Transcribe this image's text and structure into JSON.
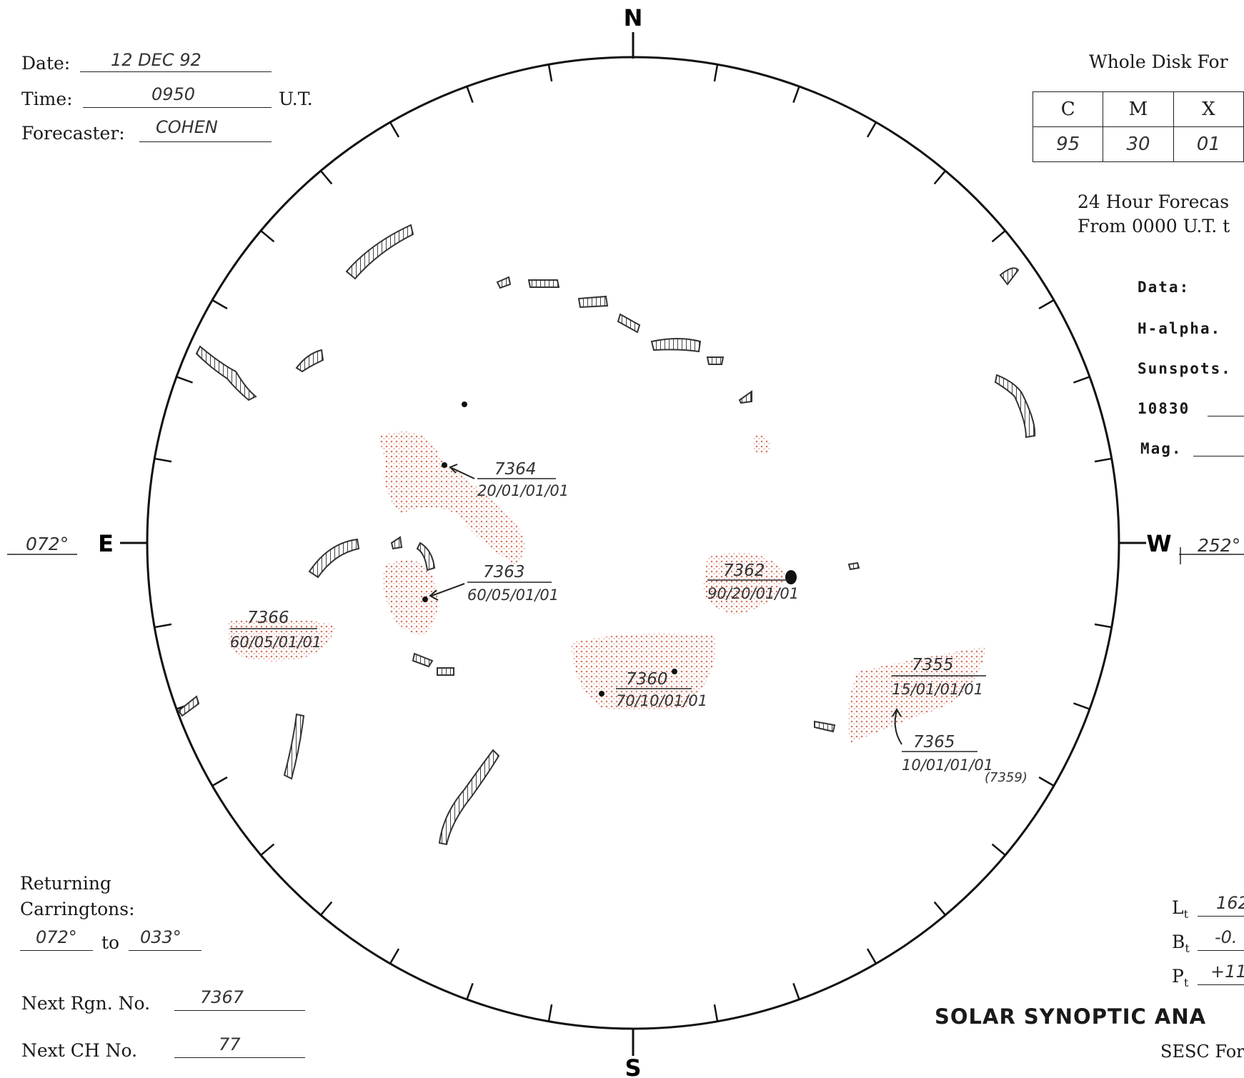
{
  "header": {
    "date_label": "Date:",
    "date_value": "12 DEC 92",
    "time_label": "Time:",
    "time_value": "0950",
    "time_unit": "U.T.",
    "forecaster_label": "Forecaster:",
    "forecaster_value": "COHEN"
  },
  "forecast": {
    "title": "Whole Disk For",
    "columns": [
      "C",
      "M",
      "X"
    ],
    "values": [
      "95",
      "30",
      "01"
    ],
    "note_line1": "24 Hour Forecas",
    "note_line2": "From 0000 U.T. t"
  },
  "data_fields": {
    "title": "Data:",
    "items": [
      "H-alpha.",
      "Sunspots.",
      "10830",
      "Mag."
    ]
  },
  "compass": {
    "north": "N",
    "south": "S",
    "east": "E",
    "west": "W"
  },
  "longitudes": {
    "east": "072°",
    "west": "252°"
  },
  "regions": [
    {
      "number": "7364",
      "code": "20/01/01/01"
    },
    {
      "number": "7363",
      "code": "60/05/01/01"
    },
    {
      "number": "7366",
      "code": "60/05/01/01"
    },
    {
      "number": "7362",
      "code": "90/20/01/01"
    },
    {
      "number": "7360",
      "code": "70/10/01/01"
    },
    {
      "number": "7355",
      "code": "15/01/01/01"
    },
    {
      "number": "7365",
      "code": "10/01/01/01",
      "note": "(7359)"
    }
  ],
  "returning": {
    "label_line1": "Returning",
    "label_line2": "Carringtons:",
    "from": "072°",
    "to_word": "to",
    "to": "033°"
  },
  "next": {
    "rgn_label": "Next Rgn. No.",
    "rgn_value": "7367",
    "ch_label": "Next CH No.",
    "ch_value": "77"
  },
  "orientation": {
    "lt_label": "L",
    "lt_sub": "t",
    "lt_value": "162",
    "bt_label": "B",
    "bt_sub": "t",
    "bt_value": "-0.",
    "pt_label": "P",
    "pt_sub": "t",
    "pt_value": "+11."
  },
  "footer": {
    "title": "SOLAR SYNOPTIC ANA",
    "subtitle": "SESC For"
  },
  "colors": {
    "plage": "#c8553d",
    "ink": "#222222",
    "filament": "#444444"
  }
}
